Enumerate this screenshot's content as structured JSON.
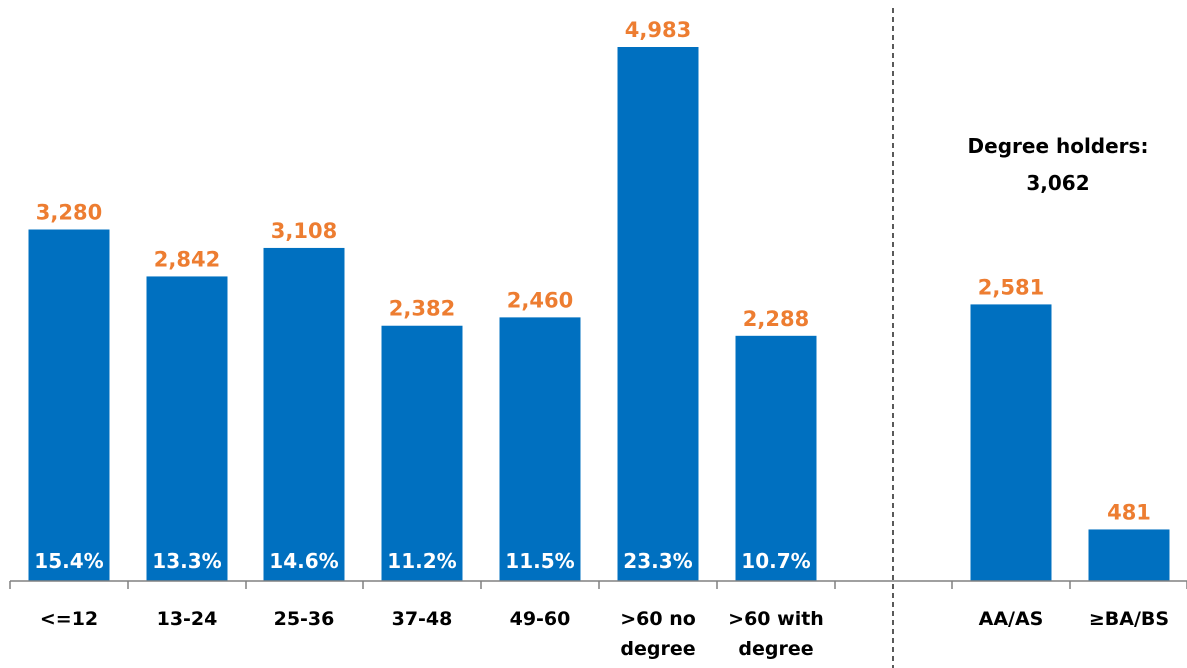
{
  "colors": {
    "bar": "#0070C0",
    "value_label": "#ED7D31",
    "pct_label": "#FFFFFF",
    "text": "#000000",
    "axis": "#808080"
  },
  "annotation": {
    "line1": "Degree holders:",
    "line2": "3,062"
  },
  "chart_data": {
    "type": "bar",
    "categories": [
      "<=12",
      "13-24",
      "25-36",
      "37-48",
      "49-60",
      ">60 no degree",
      ">60 with degree",
      "AA/AS",
      "≥BA/BS"
    ],
    "category_lines": [
      [
        "<=12"
      ],
      [
        "13-24"
      ],
      [
        "25-36"
      ],
      [
        "37-48"
      ],
      [
        "49-60"
      ],
      [
        ">60 no",
        "degree"
      ],
      [
        ">60 with",
        "degree"
      ],
      [
        "AA/AS"
      ],
      [
        "≥BA/BS"
      ]
    ],
    "values": [
      3280,
      2842,
      3108,
      2382,
      2460,
      4983,
      2288,
      2581,
      481
    ],
    "value_labels": [
      "3,280",
      "2,842",
      "3,108",
      "2,382",
      "2,460",
      "4,983",
      "2,288",
      "2,581",
      "481"
    ],
    "percent_labels": [
      "15.4%",
      "13.3%",
      "14.6%",
      "11.2%",
      "11.5%",
      "23.3%",
      "10.7%",
      "",
      ""
    ],
    "ylim": [
      0,
      5200
    ],
    "grid": false,
    "legend": "none",
    "separator_after_index": 6
  }
}
